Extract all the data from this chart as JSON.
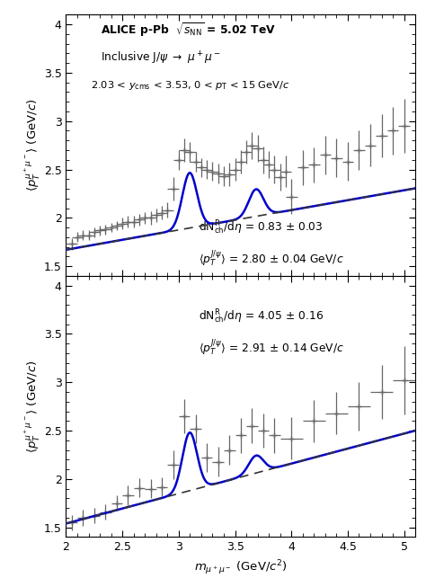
{
  "xlim": [
    2.0,
    5.1
  ],
  "ylim": [
    1.4,
    4.1
  ],
  "xlabel": "$m_{\\mu^+\\mu^-}$ (GeV/$c^2$)",
  "ylabel": "$\\langle p_T^{\\mu^+\\mu^-}\\rangle$ (GeV/$c$)",
  "yticks": [
    1.5,
    2.0,
    2.5,
    3.0,
    3.5,
    4.0
  ],
  "xticks": [
    2.0,
    2.5,
    3.0,
    3.5,
    4.0,
    4.5,
    5.0
  ],
  "panel1_label1": "dN$^{\\mathrm{R}}_{\\mathrm{ch}}$/d$\\eta$ = 0.83 $\\pm$ 0.03",
  "panel1_label2": "$\\langle p_T^{J/\\psi}\\rangle$ = 2.80 $\\pm$ 0.04 GeV/$c$",
  "panel2_label1": "dN$^{\\mathrm{R}}_{\\mathrm{ch}}$/d$\\eta$ = 4.05 $\\pm$ 0.16",
  "panel2_label2": "$\\langle p_T^{J/\\psi}\\rangle$ = 2.91 $\\pm$ 0.14 GeV/$c$",
  "data_color": "#666666",
  "line_color": "#0000cc",
  "dashed_color": "#333333",
  "bg1_a": 1.67,
  "bg1_b": 0.205,
  "bg2_a": 1.54,
  "bg2_b": 0.31,
  "jpsi_mu": 3.097,
  "jpsi_sigma": 0.065,
  "psi2s_mu": 3.686,
  "psi2s_sigma": 0.065,
  "jpsi_amp1": 0.57,
  "psi2s_amp1": 0.28,
  "jpsi_amp2": 0.6,
  "psi2s_amp2": 0.18,
  "panel1_data_x": [
    2.05,
    2.1,
    2.15,
    2.2,
    2.25,
    2.3,
    2.35,
    2.4,
    2.45,
    2.5,
    2.55,
    2.6,
    2.65,
    2.7,
    2.75,
    2.8,
    2.85,
    2.9,
    2.95,
    3.0,
    3.05,
    3.1,
    3.15,
    3.2,
    3.25,
    3.3,
    3.35,
    3.4,
    3.45,
    3.5,
    3.55,
    3.6,
    3.65,
    3.7,
    3.75,
    3.8,
    3.85,
    3.9,
    3.95,
    4.0,
    4.1,
    4.2,
    4.3,
    4.4,
    4.5,
    4.6,
    4.7,
    4.8,
    4.9,
    5.0
  ],
  "panel1_data_y": [
    1.73,
    1.8,
    1.82,
    1.82,
    1.85,
    1.87,
    1.88,
    1.9,
    1.92,
    1.94,
    1.96,
    1.96,
    1.98,
    2.0,
    2.0,
    2.03,
    2.05,
    2.08,
    2.3,
    2.6,
    2.7,
    2.68,
    2.58,
    2.52,
    2.5,
    2.48,
    2.46,
    2.43,
    2.45,
    2.5,
    2.58,
    2.68,
    2.75,
    2.72,
    2.6,
    2.55,
    2.5,
    2.42,
    2.48,
    2.22,
    2.52,
    2.55,
    2.65,
    2.62,
    2.58,
    2.7,
    2.75,
    2.85,
    2.9,
    2.95
  ],
  "panel1_err_x": [
    0.05,
    0.05,
    0.05,
    0.05,
    0.05,
    0.05,
    0.05,
    0.05,
    0.05,
    0.05,
    0.05,
    0.05,
    0.05,
    0.05,
    0.05,
    0.05,
    0.05,
    0.05,
    0.05,
    0.05,
    0.05,
    0.05,
    0.05,
    0.05,
    0.05,
    0.05,
    0.05,
    0.05,
    0.05,
    0.05,
    0.05,
    0.05,
    0.05,
    0.05,
    0.05,
    0.05,
    0.05,
    0.05,
    0.05,
    0.05,
    0.05,
    0.05,
    0.05,
    0.05,
    0.05,
    0.05,
    0.05,
    0.05,
    0.05,
    0.05
  ],
  "panel1_err_y": [
    0.06,
    0.05,
    0.05,
    0.05,
    0.05,
    0.05,
    0.05,
    0.05,
    0.05,
    0.06,
    0.06,
    0.06,
    0.06,
    0.06,
    0.07,
    0.07,
    0.07,
    0.08,
    0.12,
    0.1,
    0.12,
    0.1,
    0.1,
    0.1,
    0.1,
    0.1,
    0.1,
    0.1,
    0.12,
    0.12,
    0.12,
    0.12,
    0.14,
    0.14,
    0.14,
    0.14,
    0.14,
    0.14,
    0.16,
    0.18,
    0.18,
    0.18,
    0.2,
    0.2,
    0.2,
    0.2,
    0.22,
    0.22,
    0.25,
    0.28
  ],
  "panel2_data_x": [
    2.05,
    2.15,
    2.25,
    2.35,
    2.45,
    2.55,
    2.65,
    2.75,
    2.85,
    2.95,
    3.05,
    3.15,
    3.25,
    3.35,
    3.45,
    3.55,
    3.65,
    3.75,
    3.85,
    4.0,
    4.2,
    4.4,
    4.6,
    4.8,
    5.0
  ],
  "panel2_data_y": [
    1.55,
    1.6,
    1.62,
    1.66,
    1.75,
    1.83,
    1.91,
    1.9,
    1.92,
    2.15,
    2.65,
    2.52,
    2.22,
    2.18,
    2.3,
    2.45,
    2.55,
    2.5,
    2.45,
    2.42,
    2.6,
    2.68,
    2.75,
    2.9,
    3.02
  ],
  "panel2_err_x": [
    0.05,
    0.05,
    0.05,
    0.05,
    0.05,
    0.05,
    0.05,
    0.05,
    0.05,
    0.05,
    0.05,
    0.05,
    0.05,
    0.05,
    0.05,
    0.05,
    0.05,
    0.05,
    0.05,
    0.1,
    0.1,
    0.1,
    0.1,
    0.1,
    0.1
  ],
  "panel2_err_y": [
    0.08,
    0.08,
    0.08,
    0.08,
    0.08,
    0.1,
    0.1,
    0.1,
    0.1,
    0.15,
    0.18,
    0.15,
    0.15,
    0.15,
    0.15,
    0.18,
    0.18,
    0.18,
    0.18,
    0.22,
    0.22,
    0.22,
    0.25,
    0.28,
    0.35
  ]
}
